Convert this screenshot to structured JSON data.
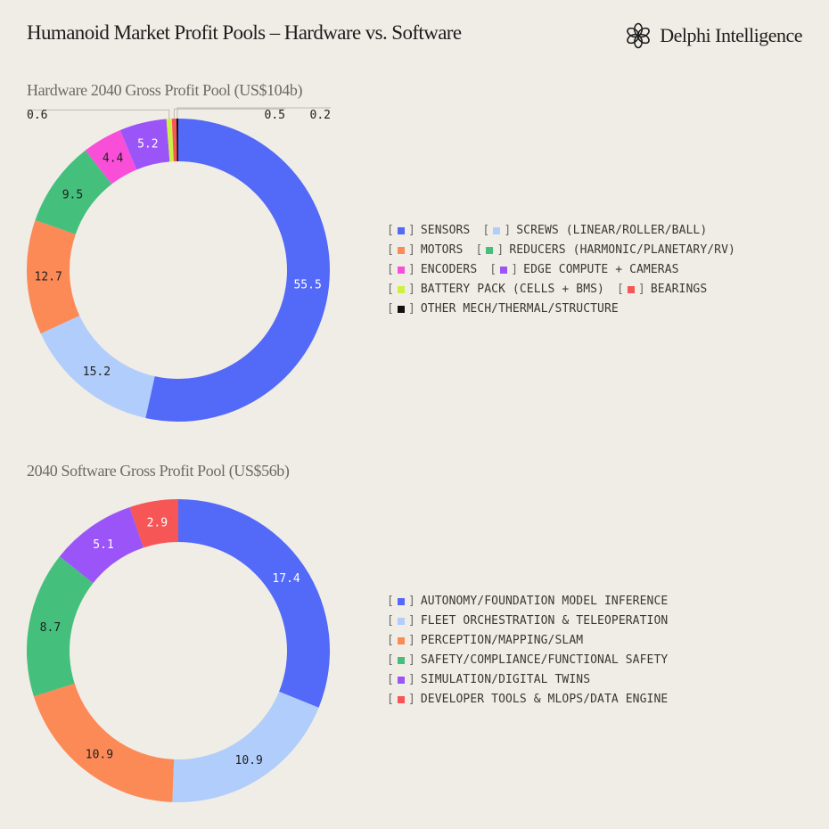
{
  "header": {
    "title": "Humanoid Market Profit Pools – Hardware vs. Software",
    "brand": "Delphi Intelligence",
    "brand_icon": "flower-logo-icon"
  },
  "chart_data": [
    {
      "type": "pie",
      "title": "Hardware 2040 Gross Profit Pool (US$104b)",
      "donut": true,
      "legend_position": "right",
      "start_angle_deg": 0,
      "direction": "clockwise",
      "slices": [
        {
          "label": "SENSORS",
          "value": 55.5,
          "color": "#5369f8",
          "value_label": "55.5"
        },
        {
          "label": "SCREWS (LINEAR/ROLLER/BALL)",
          "value": 15.2,
          "color": "#b1cdfb",
          "value_label": "15.2"
        },
        {
          "label": "MOTORS",
          "value": 12.7,
          "color": "#fb8a57",
          "value_label": "12.7"
        },
        {
          "label": "REDUCERS (HARMONIC/PLANETARY/RV)",
          "value": 9.5,
          "color": "#44bf7c",
          "value_label": "9.5"
        },
        {
          "label": "ENCODERS",
          "value": 4.4,
          "color": "#f94fd8",
          "value_label": "4.4"
        },
        {
          "label": "EDGE COMPUTE + CAMERAS",
          "value": 5.2,
          "color": "#9b54f8",
          "value_label": "5.2"
        },
        {
          "label": "BATTERY PACK (CELLS + BMS)",
          "value": 0.6,
          "color": "#cdf043",
          "value_label": "0.6"
        },
        {
          "label": "BEARINGS",
          "value": 0.5,
          "color": "#f65656",
          "value_label": "0.5"
        },
        {
          "label": "OTHER MECH/THERMAL/STRUCTURE",
          "value": 0.2,
          "color": "#111111",
          "value_label": "0.2"
        }
      ],
      "legend_rows": [
        [
          0,
          1
        ],
        [
          2,
          3
        ],
        [
          4,
          5
        ],
        [
          6,
          7
        ],
        [
          8
        ]
      ]
    },
    {
      "type": "pie",
      "title": "2040 Software Gross Profit Pool (US$56b)",
      "donut": true,
      "legend_position": "right",
      "start_angle_deg": 0,
      "direction": "clockwise",
      "slices": [
        {
          "label": "AUTONOMY/FOUNDATION MODEL INFERENCE",
          "value": 17.4,
          "color": "#5369f8",
          "value_label": "17.4"
        },
        {
          "label": "FLEET ORCHESTRATION & TELEOPERATION",
          "value": 10.9,
          "color": "#b1cdfb",
          "value_label": "10.9"
        },
        {
          "label": "PERCEPTION/MAPPING/SLAM",
          "value": 10.9,
          "color": "#fb8a57",
          "value_label": "10.9"
        },
        {
          "label": "SAFETY/COMPLIANCE/FUNCTIONAL SAFETY",
          "value": 8.7,
          "color": "#44bf7c",
          "value_label": "8.7"
        },
        {
          "label": "SIMULATION/DIGITAL TWINS",
          "value": 5.1,
          "color": "#9b54f8",
          "value_label": "5.1"
        },
        {
          "label": "DEVELOPER TOOLS & MLOPS/DATA ENGINE",
          "value": 2.9,
          "color": "#f65656",
          "value_label": "2.9"
        }
      ],
      "legend_rows": [
        [
          0
        ],
        [
          1
        ],
        [
          2
        ],
        [
          3
        ],
        [
          4
        ],
        [
          5
        ]
      ]
    }
  ]
}
